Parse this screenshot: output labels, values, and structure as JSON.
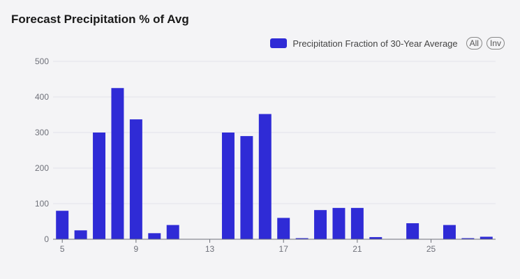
{
  "chart_data": {
    "type": "bar",
    "title": "Forecast Precipitation % of Avg",
    "series": [
      {
        "name": "Precipitation Fraction of 30-Year Average",
        "color": "#2f2bd6",
        "x": [
          5,
          6,
          7,
          8,
          9,
          10,
          11,
          12,
          13,
          14,
          15,
          16,
          17,
          18,
          19,
          20,
          21,
          22,
          23,
          24,
          25,
          26,
          27,
          28
        ],
        "values": [
          80,
          25,
          300,
          425,
          337,
          17,
          40,
          0,
          0,
          300,
          290,
          352,
          60,
          3,
          82,
          88,
          88,
          6,
          1,
          45,
          0,
          40,
          3,
          7
        ]
      }
    ],
    "x_tick_labels": [
      "5",
      "9",
      "13",
      "17",
      "21",
      "25"
    ],
    "y_tick_labels": [
      "0",
      "100",
      "200",
      "300",
      "400",
      "500"
    ],
    "ylim": [
      0,
      500
    ],
    "xlabel": "",
    "ylabel": "",
    "grid": true,
    "legend_position": "top-right"
  },
  "legend": {
    "all_label": "All",
    "inv_label": "Inv"
  }
}
